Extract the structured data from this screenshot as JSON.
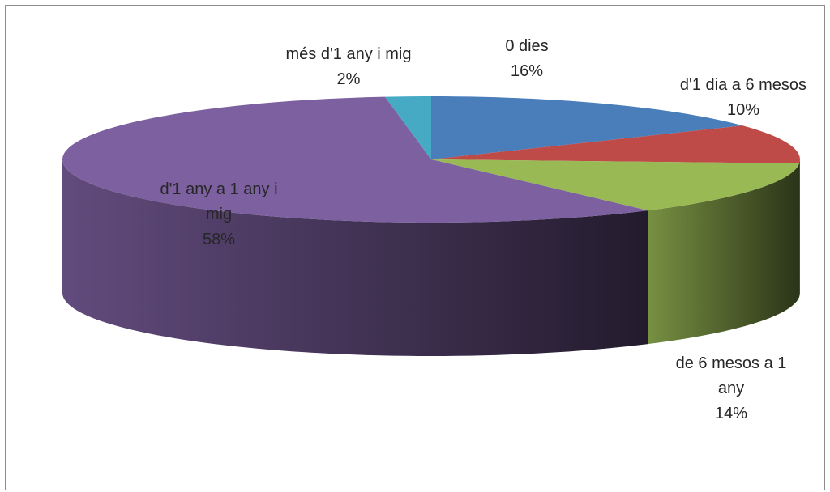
{
  "chart_data": {
    "type": "pie",
    "style": "3d-exploded-none",
    "title": "",
    "slices": [
      {
        "label_lines": [
          "0 dies"
        ],
        "value": 16,
        "value_text": "16%",
        "color": "#4a7ebb"
      },
      {
        "label_lines": [
          "d'1 dia a 6 mesos"
        ],
        "value": 10,
        "value_text": "10%",
        "color": "#be4b48"
      },
      {
        "label_lines": [
          "de 6 mesos a 1",
          "any"
        ],
        "value": 14,
        "value_text": "14%",
        "color": "#98b954"
      },
      {
        "label_lines": [
          "d'1 any a 1 any i",
          "mig"
        ],
        "value": 58,
        "value_text": "58%",
        "color": "#7d60a0"
      },
      {
        "label_lines": [
          "més d'1 any i mig"
        ],
        "value": 2,
        "value_text": "2%",
        "color": "#46aac5"
      }
    ],
    "legend": "none"
  }
}
